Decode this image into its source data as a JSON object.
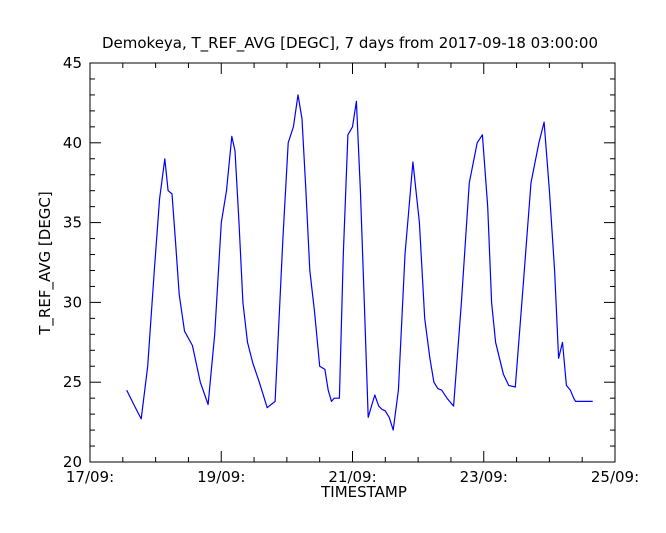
{
  "chart_data": {
    "type": "line",
    "title": "Demokeya, T_REF_AVG [DEGC], 7 days from  2017-09-18 03:00:00",
    "xlabel": "TIMESTAMP",
    "ylabel": "T_REF_AVG [DEGC]",
    "x_unit": "days (September 2017)",
    "xlim": [
      17.0,
      25.0
    ],
    "ylim": [
      20,
      45
    ],
    "x_ticks": [
      17,
      19,
      21,
      23,
      25
    ],
    "x_tick_labels": [
      "17/09:",
      "19/09:",
      "21/09:",
      "23/09:",
      "25/09:"
    ],
    "y_ticks": [
      20,
      25,
      30,
      35,
      40,
      45
    ],
    "y_tick_labels": [
      "20",
      "25",
      "30",
      "35",
      "40",
      "45"
    ],
    "grid": false,
    "legend": "none",
    "series": [
      {
        "color": "#0000ff",
        "x": [
          17.56,
          17.68,
          17.78,
          17.88,
          17.98,
          18.06,
          18.14,
          18.19,
          18.25,
          18.3,
          18.36,
          18.44,
          18.56,
          18.68,
          18.8,
          18.9,
          19.0,
          19.08,
          19.16,
          19.21,
          19.27,
          19.33,
          19.4,
          19.48,
          19.58,
          19.7,
          19.82,
          19.94,
          20.02,
          20.1,
          20.17,
          20.23,
          20.29,
          20.35,
          20.42,
          20.5,
          20.58,
          20.63,
          20.68,
          20.72,
          20.8,
          20.86,
          20.93,
          21.0,
          21.06,
          21.12,
          21.18,
          21.24,
          21.29,
          21.34,
          21.4,
          21.45,
          21.5,
          21.56,
          21.62,
          21.7,
          21.8,
          21.92,
          22.02,
          22.1,
          22.18,
          22.24,
          22.3,
          22.36,
          22.44,
          22.54,
          22.66,
          22.78,
          22.9,
          22.98,
          23.06,
          23.12,
          23.18,
          23.24,
          23.3,
          23.38,
          23.48,
          23.6,
          23.72,
          23.84,
          23.92,
          24.0,
          24.08,
          24.14,
          24.2,
          24.26,
          24.32,
          24.37,
          24.4,
          24.44,
          24.48,
          24.56,
          24.66
        ],
        "y": [
          24.5,
          23.5,
          22.7,
          26.0,
          32.0,
          36.5,
          39.0,
          37.0,
          36.8,
          34.0,
          30.5,
          28.2,
          27.3,
          25.0,
          23.6,
          28.0,
          35.0,
          37.0,
          40.4,
          39.5,
          35.0,
          30.0,
          27.5,
          26.2,
          25.0,
          23.4,
          23.8,
          34.0,
          40.0,
          41.0,
          43.0,
          41.5,
          37.0,
          32.0,
          29.5,
          26.0,
          25.8,
          24.5,
          23.8,
          24.0,
          24.0,
          33.0,
          40.5,
          41.0,
          42.6,
          37.0,
          30.0,
          22.8,
          23.5,
          24.2,
          23.5,
          23.3,
          23.2,
          22.8,
          22.0,
          24.5,
          33.0,
          38.8,
          35.0,
          29.0,
          26.5,
          25.0,
          24.6,
          24.5,
          24.0,
          23.5,
          30.0,
          37.5,
          40.0,
          40.5,
          36.0,
          30.0,
          27.5,
          26.5,
          25.5,
          24.8,
          24.7,
          31.0,
          37.5,
          40.0,
          41.3,
          37.0,
          32.0,
          26.5,
          27.5,
          24.8,
          24.5,
          24.0,
          23.8,
          23.8,
          23.8,
          23.8,
          23.8
        ]
      }
    ]
  }
}
